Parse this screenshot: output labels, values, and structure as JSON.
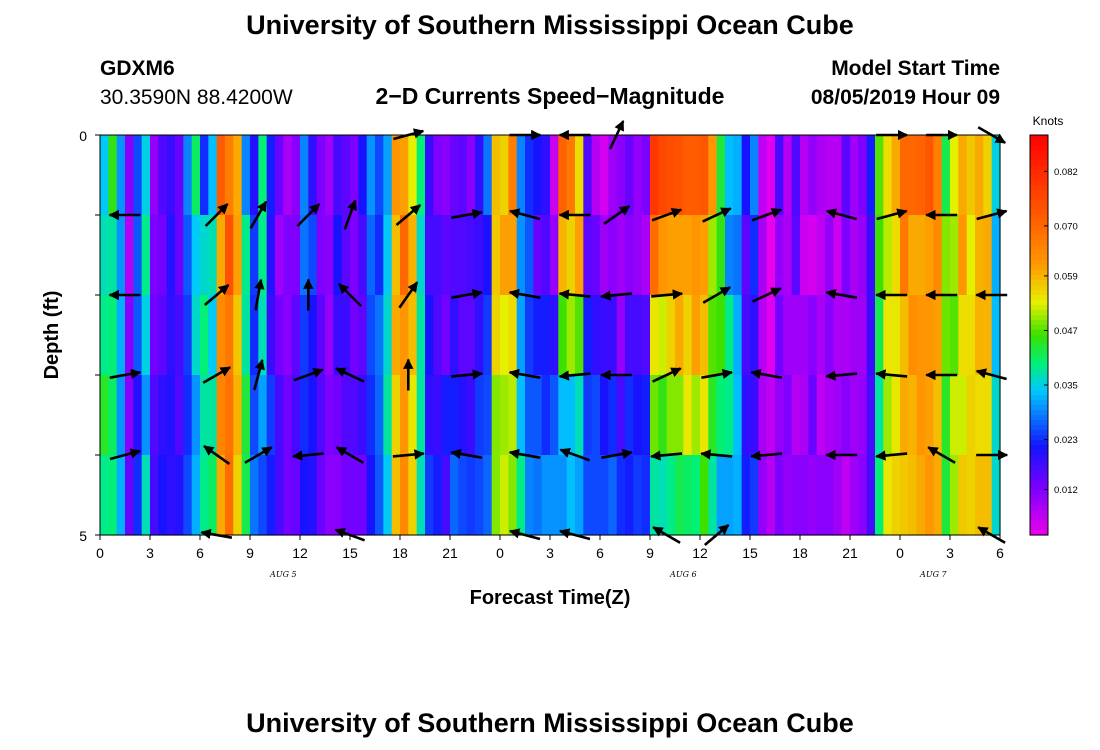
{
  "header": {
    "title": "University of Southern Mississippi Ocean Cube",
    "footer_title": "University of Southern Mississippi Ocean Cube",
    "station": "GDXM6",
    "coords": "30.3590N 88.4200W",
    "subtitle": "2−D Currents Speed−Magnitude",
    "model_label": "Model Start Time",
    "model_time": "08/05/2019 Hour 09"
  },
  "chart_data": {
    "type": "heatmap",
    "title": "2−D Currents Speed−Magnitude",
    "xlabel": "Forecast Time(Z)",
    "ylabel": "Depth (ft)",
    "x_tick_labels": [
      "0",
      "3",
      "6",
      "9",
      "12",
      "15",
      "18",
      "21",
      "0",
      "3",
      "6",
      "9",
      "12",
      "15",
      "18",
      "21",
      "0",
      "3",
      "6"
    ],
    "x_hours": [
      0,
      3,
      6,
      9,
      12,
      15,
      18,
      21,
      24,
      27,
      30,
      33,
      36,
      39,
      42,
      45,
      48,
      51,
      54
    ],
    "xlim": [
      0,
      54
    ],
    "dates": [
      {
        "label": "AUG 5",
        "hour": 11
      },
      {
        "label": "AUG 6",
        "hour": 35
      },
      {
        "label": "AUG 7",
        "hour": 50
      }
    ],
    "y_tick_labels": [
      "0",
      "5"
    ],
    "ylim": [
      0,
      5
    ],
    "colorbar": {
      "unit": "Knots",
      "ticks": [
        0.012,
        0.023,
        0.035,
        0.047,
        0.059,
        0.07,
        0.082
      ],
      "tick_labels": [
        "0.012",
        "0.023",
        "0.035",
        "0.047",
        "0.059",
        "0.070",
        "0.082"
      ],
      "range": [
        0.002,
        0.09
      ]
    },
    "speed": [
      [
        0.034,
        0.045,
        0.03,
        0.011,
        0.025,
        0.035,
        0.01,
        0.016,
        0.018,
        0.014,
        0.029,
        0.041,
        0.023,
        0.033,
        0.072,
        0.066,
        0.06,
        0.029,
        0.02,
        0.04,
        0.022,
        0.014,
        0.008,
        0.011,
        0.029,
        0.019,
        0.012,
        0.009,
        0.017,
        0.015,
        0.012,
        0.021,
        0.03,
        0.025,
        0.031,
        0.062,
        0.061,
        0.053,
        0.04,
        0.018,
        0.012,
        0.011,
        0.014,
        0.015,
        0.011,
        0.019,
        0.028,
        0.058,
        0.056,
        0.066,
        0.029,
        0.023,
        0.021,
        0.019,
        0.005,
        0.071,
        0.067,
        0.055,
        0.016,
        0.007,
        0.004,
        0.009,
        0.011,
        0.014,
        0.01,
        0.012,
        0.079,
        0.076,
        0.075,
        0.074,
        0.072,
        0.072,
        0.073,
        0.062,
        0.043,
        0.033,
        0.032,
        0.021,
        0.029,
        0.006,
        0.003,
        0.017,
        0.007,
        0.016,
        0.007,
        0.01,
        0.008,
        0.007,
        0.007,
        0.015,
        0.009,
        0.012,
        0.022,
        0.047,
        0.055,
        0.06,
        0.07,
        0.07,
        0.071,
        0.073,
        0.066,
        0.042,
        0.053,
        0.06,
        0.057,
        0.06,
        0.056,
        0.035
      ],
      [
        0.037,
        0.038,
        0.03,
        0.007,
        0.026,
        0.039,
        0.012,
        0.013,
        0.02,
        0.014,
        0.026,
        0.034,
        0.036,
        0.037,
        0.06,
        0.074,
        0.061,
        0.039,
        0.024,
        0.039,
        0.02,
        0.009,
        0.012,
        0.012,
        0.028,
        0.025,
        0.012,
        0.011,
        0.021,
        0.015,
        0.012,
        0.017,
        0.027,
        0.023,
        0.034,
        0.058,
        0.07,
        0.059,
        0.036,
        0.017,
        0.017,
        0.015,
        0.016,
        0.016,
        0.017,
        0.018,
        0.021,
        0.057,
        0.061,
        0.061,
        0.03,
        0.026,
        0.014,
        0.016,
        0.01,
        0.059,
        0.056,
        0.061,
        0.015,
        0.014,
        0.009,
        0.011,
        0.009,
        0.011,
        0.01,
        0.008,
        0.069,
        0.062,
        0.061,
        0.061,
        0.061,
        0.062,
        0.061,
        0.05,
        0.045,
        0.029,
        0.028,
        0.015,
        0.023,
        0.008,
        0.001,
        0.01,
        0.008,
        0.015,
        0.005,
        0.004,
        0.006,
        0.01,
        0.005,
        0.012,
        0.008,
        0.01,
        0.018,
        0.046,
        0.051,
        0.055,
        0.067,
        0.06,
        0.06,
        0.061,
        0.064,
        0.049,
        0.05,
        0.062,
        0.053,
        0.059,
        0.06,
        0.032
      ],
      [
        0.039,
        0.04,
        0.032,
        0.011,
        0.026,
        0.035,
        0.013,
        0.015,
        0.019,
        0.017,
        0.024,
        0.036,
        0.04,
        0.034,
        0.064,
        0.067,
        0.057,
        0.038,
        0.023,
        0.037,
        0.018,
        0.013,
        0.011,
        0.015,
        0.024,
        0.021,
        0.015,
        0.01,
        0.018,
        0.018,
        0.013,
        0.015,
        0.025,
        0.028,
        0.036,
        0.06,
        0.062,
        0.058,
        0.038,
        0.021,
        0.016,
        0.013,
        0.019,
        0.015,
        0.015,
        0.019,
        0.024,
        0.056,
        0.053,
        0.055,
        0.031,
        0.024,
        0.022,
        0.022,
        0.019,
        0.046,
        0.05,
        0.047,
        0.022,
        0.019,
        0.018,
        0.018,
        0.01,
        0.017,
        0.017,
        0.016,
        0.054,
        0.052,
        0.056,
        0.06,
        0.056,
        0.061,
        0.058,
        0.047,
        0.046,
        0.039,
        0.032,
        0.017,
        0.019,
        0.007,
        0.003,
        0.013,
        0.009,
        0.009,
        0.009,
        0.011,
        0.008,
        0.011,
        0.008,
        0.008,
        0.009,
        0.009,
        0.018,
        0.042,
        0.054,
        0.054,
        0.058,
        0.063,
        0.062,
        0.062,
        0.061,
        0.048,
        0.047,
        0.055,
        0.055,
        0.059,
        0.059,
        0.033
      ],
      [
        0.044,
        0.041,
        0.03,
        0.011,
        0.02,
        0.03,
        0.016,
        0.019,
        0.02,
        0.016,
        0.023,
        0.03,
        0.038,
        0.038,
        0.065,
        0.068,
        0.059,
        0.043,
        0.025,
        0.031,
        0.024,
        0.017,
        0.013,
        0.017,
        0.023,
        0.021,
        0.016,
        0.012,
        0.013,
        0.016,
        0.016,
        0.018,
        0.023,
        0.027,
        0.038,
        0.056,
        0.062,
        0.054,
        0.038,
        0.019,
        0.018,
        0.022,
        0.022,
        0.02,
        0.018,
        0.024,
        0.025,
        0.049,
        0.05,
        0.051,
        0.033,
        0.026,
        0.026,
        0.023,
        0.026,
        0.033,
        0.033,
        0.037,
        0.024,
        0.025,
        0.021,
        0.023,
        0.017,
        0.023,
        0.021,
        0.022,
        0.048,
        0.045,
        0.049,
        0.049,
        0.054,
        0.05,
        0.054,
        0.044,
        0.04,
        0.039,
        0.033,
        0.019,
        0.018,
        0.008,
        0.006,
        0.01,
        0.012,
        0.007,
        0.008,
        0.014,
        0.006,
        0.008,
        0.009,
        0.011,
        0.009,
        0.01,
        0.017,
        0.038,
        0.05,
        0.054,
        0.06,
        0.059,
        0.062,
        0.061,
        0.058,
        0.044,
        0.052,
        0.052,
        0.056,
        0.055,
        0.055,
        0.036
      ],
      [
        0.039,
        0.04,
        0.032,
        0.014,
        0.023,
        0.037,
        0.017,
        0.021,
        0.019,
        0.02,
        0.025,
        0.032,
        0.039,
        0.041,
        0.06,
        0.069,
        0.056,
        0.042,
        0.028,
        0.025,
        0.022,
        0.017,
        0.013,
        0.014,
        0.021,
        0.02,
        0.014,
        0.011,
        0.011,
        0.013,
        0.013,
        0.013,
        0.021,
        0.026,
        0.034,
        0.058,
        0.064,
        0.056,
        0.037,
        0.024,
        0.022,
        0.017,
        0.027,
        0.025,
        0.024,
        0.025,
        0.027,
        0.049,
        0.052,
        0.049,
        0.039,
        0.029,
        0.028,
        0.03,
        0.03,
        0.03,
        0.033,
        0.031,
        0.025,
        0.025,
        0.025,
        0.027,
        0.023,
        0.022,
        0.024,
        0.023,
        0.038,
        0.037,
        0.039,
        0.042,
        0.041,
        0.04,
        0.046,
        0.038,
        0.031,
        0.031,
        0.032,
        0.022,
        0.024,
        0.01,
        0.007,
        0.012,
        0.01,
        0.011,
        0.011,
        0.01,
        0.011,
        0.011,
        0.009,
        0.006,
        0.009,
        0.011,
        0.017,
        0.04,
        0.054,
        0.056,
        0.057,
        0.058,
        0.06,
        0.062,
        0.06,
        0.043,
        0.05,
        0.057,
        0.056,
        0.058,
        0.058,
        0.036
      ]
    ],
    "vectors": {
      "hours": [
        1.5,
        7,
        9.5,
        12.5,
        15,
        18.5,
        22,
        25.5,
        28.5,
        31,
        34,
        37,
        40,
        44.5,
        47.5,
        50.5,
        53.5
      ],
      "depths": [
        0,
        1,
        2,
        3,
        4,
        5
      ],
      "angles_deg": [
        [
          null,
          null,
          null,
          null,
          null,
          15,
          null,
          0,
          180,
          65,
          null,
          null,
          null,
          null,
          0,
          0,
          -30
        ],
        [
          180,
          45,
          60,
          45,
          70,
          40,
          10,
          165,
          180,
          35,
          20,
          25,
          20,
          165,
          15,
          180,
          15
        ],
        [
          180,
          40,
          80,
          90,
          135,
          55,
          10,
          170,
          175,
          185,
          5,
          30,
          25,
          170,
          180,
          180,
          180
        ],
        [
          10,
          30,
          75,
          20,
          155,
          90,
          5,
          170,
          185,
          180,
          25,
          10,
          170,
          185,
          175,
          180,
          165
        ],
        [
          15,
          145,
          30,
          185,
          150,
          5,
          170,
          170,
          160,
          10,
          185,
          175,
          185,
          180,
          185,
          150,
          0
        ],
        [
          null,
          170,
          null,
          null,
          160,
          null,
          null,
          165,
          165,
          null,
          150,
          40,
          null,
          null,
          null,
          null,
          150
        ]
      ]
    }
  }
}
